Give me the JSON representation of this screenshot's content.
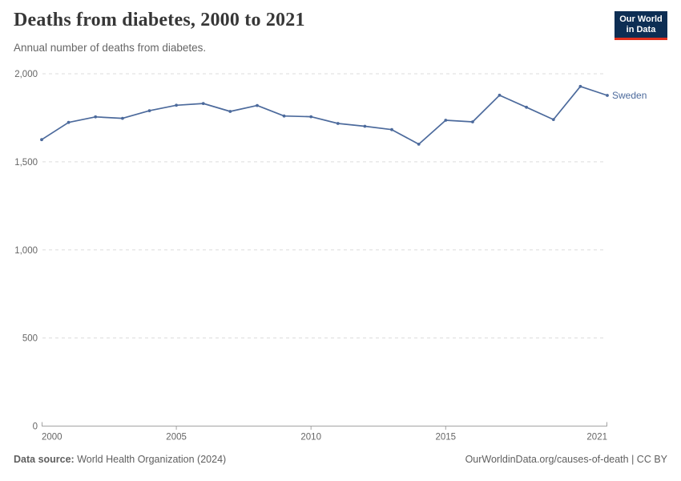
{
  "header": {
    "title": "Deaths from diabetes, 2000 to 2021",
    "subtitle": "Annual number of deaths from diabetes."
  },
  "logo": {
    "line1": "Our World",
    "line2": "in Data",
    "bg_color": "#0d2e54",
    "accent_color": "#e0301e",
    "text_color": "#ffffff"
  },
  "chart_data": {
    "type": "line",
    "title": "Deaths from diabetes, 2000 to 2021",
    "subtitle": "Annual number of deaths from diabetes.",
    "x": [
      2000,
      2001,
      2002,
      2003,
      2004,
      2005,
      2006,
      2007,
      2008,
      2009,
      2010,
      2011,
      2012,
      2013,
      2014,
      2015,
      2016,
      2017,
      2018,
      2019,
      2020,
      2021
    ],
    "series": [
      {
        "name": "Sweden",
        "color": "#4C6A9C",
        "values": [
          1626,
          1724,
          1755,
          1747,
          1790,
          1821,
          1831,
          1786,
          1820,
          1760,
          1756,
          1718,
          1702,
          1683,
          1600,
          1736,
          1727,
          1878,
          1810,
          1740,
          1928,
          1877
        ]
      }
    ],
    "xlabel": "",
    "ylabel": "",
    "xlim": [
      2000,
      2021
    ],
    "ylim": [
      0,
      2000
    ],
    "x_ticks": [
      2000,
      2005,
      2010,
      2015,
      2021
    ],
    "x_tick_labels": [
      "2000",
      "2005",
      "2010",
      "2015",
      "2021"
    ],
    "y_ticks": [
      0,
      500,
      1000,
      1500,
      2000
    ],
    "y_tick_labels": [
      "0",
      "500",
      "1,000",
      "1,500",
      "2,000"
    ],
    "grid": "horizontal dashed",
    "legend_position": "end-of-line label",
    "marker": "dot"
  },
  "footer": {
    "datasource_label": "Data source:",
    "datasource_value": " World Health Organization (2024)",
    "attribution": "OurWorldinData.org/causes-of-death | CC BY"
  },
  "colors": {
    "line": "#4C6A9C",
    "axis_text": "#666666",
    "gridline": "#dcdcdc",
    "axis_line": "#a3a3a3",
    "title_text": "#373737",
    "subtitle_text": "#666666",
    "footer_text": "#5f5f5f"
  }
}
